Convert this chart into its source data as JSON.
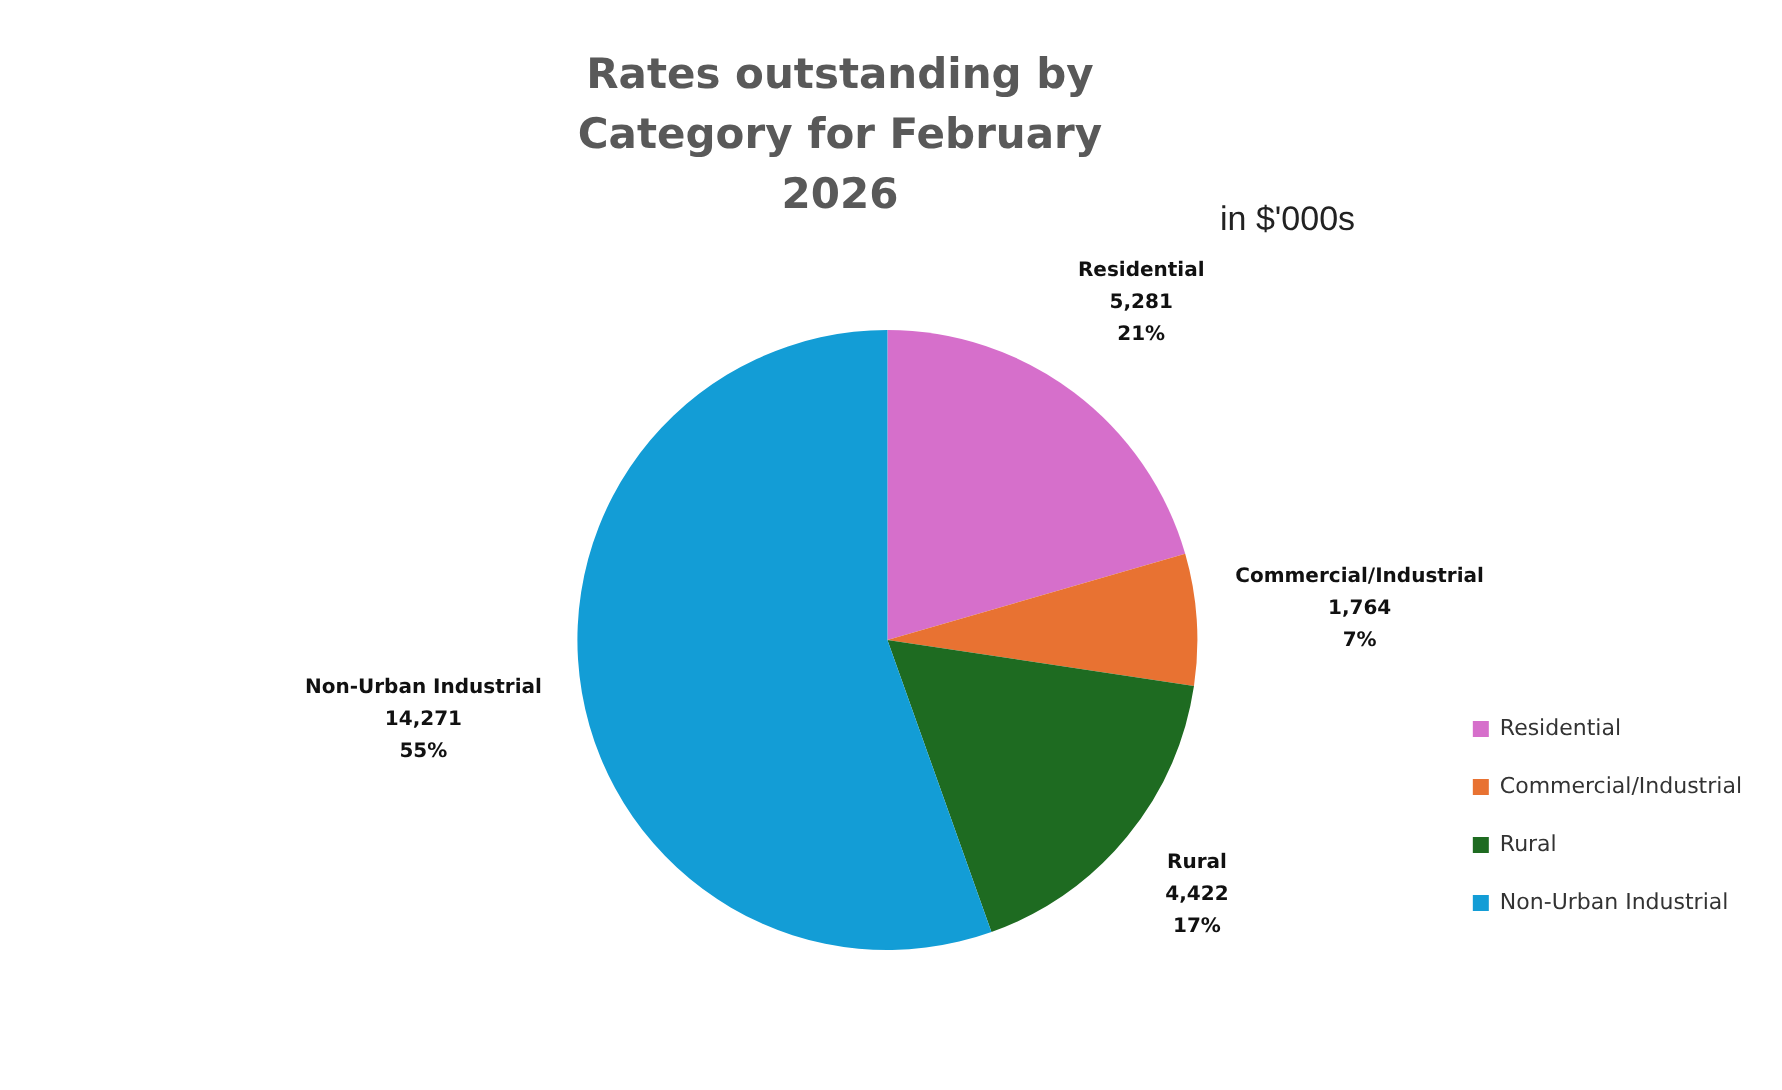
{
  "chart_data": {
    "type": "pie",
    "title": "Rates outstanding by Category for February 2026",
    "subtitle": "in $'000s",
    "categories": [
      "Residential",
      "Commercial/Industrial",
      "Rural",
      "Non-Urban Industrial"
    ],
    "values": [
      5281,
      1764,
      4422,
      14271
    ],
    "colors": [
      "#d66fcb",
      "#e87232",
      "#1e6b21",
      "#139dd6"
    ],
    "value_labels": [
      "5,281\n21%",
      "1,764\n7%",
      "4,422\n17%",
      "14,271\n55%"
    ],
    "legend": "bottom right"
  }
}
